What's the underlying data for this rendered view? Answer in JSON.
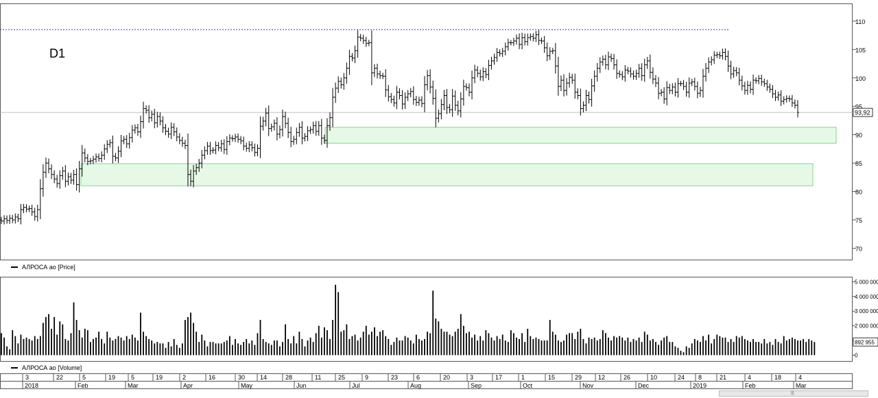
{
  "period_label": "D1",
  "legends": {
    "price": "АЛРОСА ао [Price]",
    "volume": "АЛРОСА ао [Volume]"
  },
  "colors": {
    "bars": "#000000",
    "zone": "#d6f5d6",
    "zone_border": "#7fd87f",
    "dotted": "#3333cc",
    "last_line": "#aaaaaa"
  },
  "chart_data": [
    {
      "type": "ohlc",
      "title": "",
      "ylim": [
        68,
        113
      ],
      "yticks": [
        "110",
        "105",
        "100",
        "95",
        "90",
        "85",
        "80",
        "75",
        "70"
      ],
      "last_value": "93,92",
      "resistance_level": 108.5,
      "zones": [
        {
          "low": 88.5,
          "high": 91.3
        },
        {
          "low": 81,
          "high": 84.9
        }
      ],
      "closes": [
        74.8,
        75.2,
        74.9,
        75.3,
        75.0,
        75.5,
        75.2,
        76.8,
        77.2,
        76.9,
        77.0,
        76.4,
        75.6,
        76.8,
        80.5,
        83.4,
        85.0,
        84.0,
        83.0,
        82.2,
        81.4,
        82.8,
        83.6,
        81.8,
        82.6,
        82.0,
        83.0,
        81.2,
        84.0,
        86.8,
        85.9,
        85.3,
        85.4,
        85.7,
        86.1,
        85.8,
        86.4,
        87.5,
        88.3,
        88.6,
        86.2,
        85.9,
        87.1,
        88.9,
        89.2,
        88.4,
        89.5,
        90.8,
        91.2,
        90.5,
        92.3,
        94.6,
        94.3,
        93.0,
        93.6,
        92.1,
        93.2,
        92.4,
        91.2,
        90.6,
        90.1,
        91.3,
        90.5,
        89.6,
        89.0,
        88.5,
        88.1,
        83.0,
        81.8,
        83.6,
        84.2,
        85.0,
        86.4,
        87.2,
        88.0,
        87.2,
        87.3,
        88.1,
        87.7,
        88.4,
        87.4,
        88.8,
        89.4,
        89.3,
        89.6,
        89.2,
        88.9,
        88.0,
        87.6,
        88.2,
        87.7,
        86.9,
        87.6,
        91.5,
        92.4,
        93.8,
        91.1,
        91.4,
        92.0,
        90.1,
        90.9,
        93.2,
        92.0,
        90.4,
        88.8,
        89.2,
        90.4,
        91.3,
        89.4,
        89.7,
        90.7,
        90.9,
        91.6,
        90.6,
        91.6,
        89.4,
        89.0,
        91.6,
        93.0,
        96.6,
        98.2,
        99.4,
        98.8,
        100.0,
        101.7,
        103.8,
        103.5,
        104.8,
        107.2,
        107.0,
        106.6,
        106.1,
        106.2,
        100.9,
        101.7,
        100.7,
        100.4,
        100.3,
        97.9,
        96.7,
        96.2,
        95.6,
        97.5,
        96.9,
        95.4,
        96.6,
        97.2,
        97.6,
        96.2,
        95.7,
        96.1,
        95.5,
        98.8,
        100.4,
        98.4,
        96.4,
        92.9,
        93.7,
        95.3,
        96.9,
        94.8,
        94.4,
        96.8,
        95.2,
        94.2,
        96.3,
        98.5,
        98.3,
        97.5,
        100.0,
        101.4,
        100.8,
        100.2,
        101.1,
        100.6,
        102.2,
        103.0,
        103.6,
        104.5,
        104.3,
        104.7,
        105.5,
        106.2,
        106.2,
        106.5,
        107.0,
        105.9,
        107.1,
        106.4,
        107.1,
        107.3,
        107.0,
        107.6,
        106.6,
        106.5,
        105.3,
        103.9,
        104.7,
        104.8,
        102.1,
        98.5,
        99.6,
        97.8,
        99.1,
        100.1,
        99.6,
        97.5,
        96.9,
        94.6,
        95.2,
        96.9,
        96.2,
        98.6,
        100.3,
        101.7,
        102.8,
        103.3,
        102.3,
        103.7,
        103.4,
        102.3,
        100.8,
        100.6,
        100.2,
        101.4,
        101.2,
        100.7,
        100.3,
        100.8,
        101.7,
        100.4,
        102.3,
        103.0,
        101.0,
        99.8,
        99.1,
        97.3,
        97.5,
        96.3,
        98.3,
        97.8,
        98.4,
        97.5,
        99.0,
        99.0,
        98.5,
        97.5,
        99.1,
        99.3,
        98.5,
        97.3,
        97.8,
        100.3,
        101.7,
        102.8,
        103.2,
        104.0,
        104.1,
        103.9,
        104.5,
        103.8,
        102.1,
        100.7,
        101.3,
        100.9,
        99.6,
        98.6,
        97.8,
        98.7,
        98.0,
        99.6,
        99.5,
        99.9,
        99.3,
        99.0,
        98.4,
        98.0,
        97.2,
        96.6,
        97.0,
        95.9,
        96.2,
        96.4,
        96.3,
        95.6,
        95.2,
        93.92
      ],
      "volumes": [
        1.5,
        1.2,
        0.6,
        0.4,
        1.7,
        1.3,
        0.8,
        1.4,
        1.1,
        1.2,
        1.1,
        1.0,
        1.3,
        1.1,
        1.3,
        2.2,
        2.6,
        2.8,
        1.8,
        2.6,
        1.4,
        2.3,
        2.1,
        1.1,
        1.0,
        1.5,
        3.6,
        2.4,
        1.7,
        1.2,
        1.8,
        1.7,
        0.9,
        1.1,
        1.2,
        1.6,
        1.1,
        0.8,
        1.6,
        1.2,
        1.0,
        1.1,
        1.3,
        1.2,
        1.0,
        1.3,
        1.1,
        1.4,
        1.2,
        1.0,
        2.9,
        1.6,
        1.3,
        1.1,
        1.0,
        0.8,
        0.9,
        0.8,
        0.8,
        0.5,
        0.9,
        0.6,
        1.1,
        0.7,
        0.5,
        0.8,
        2.4,
        2.6,
        2.9,
        2.2,
        1.6,
        0.9,
        1.4,
        1.0,
        0.6,
        0.9,
        0.9,
        0.8,
        0.8,
        0.8,
        0.9,
        1.0,
        1.3,
        0.7,
        1.1,
        0.8,
        0.7,
        0.9,
        1.1,
        0.8,
        1.0,
        0.7,
        1.5,
        2.4,
        1.1,
        0.9,
        0.8,
        0.7,
        1.0,
        1.0,
        0.6,
        0.9,
        2.1,
        1.1,
        0.8,
        1.3,
        0.8,
        1.6,
        1.1,
        0.6,
        1.0,
        1.2,
        0.9,
        1.5,
        2.0,
        1.2,
        1.9,
        1.7,
        1.1,
        2.4,
        4.8,
        4.3,
        1.6,
        1.7,
        2.1,
        1.1,
        1.3,
        1.4,
        1.0,
        1.2,
        1.6,
        2.0,
        1.4,
        1.6,
        1.9,
        1.3,
        1.6,
        1.7,
        1.3,
        1.1,
        0.7,
        0.9,
        1.2,
        1.0,
        1.0,
        1.3,
        1.2,
        1.0,
        0.8,
        1.4,
        1.1,
        1.0,
        1.1,
        1.6,
        1.5,
        4.4,
        2.5,
        2.3,
        1.8,
        1.6,
        1.6,
        1.4,
        1.3,
        1.6,
        1.8,
        2.8,
        2.0,
        1.5,
        1.6,
        1.2,
        1.4,
        1.0,
        1.3,
        1.0,
        1.7,
        1.5,
        1.2,
        1.0,
        1.3,
        1.1,
        1.4,
        1.0,
        0.9,
        1.7,
        1.5,
        1.2,
        1.1,
        1.5,
        0.9,
        1.8,
        1.3,
        1.1,
        1.2,
        1.1,
        1.0,
        1.0,
        1.0,
        2.4,
        1.6,
        1.4,
        1.0,
        0.9,
        1.0,
        1.4,
        1.5,
        1.5,
        1.1,
        1.6,
        1.8,
        1.1,
        0.8,
        1.2,
        1.1,
        1.2,
        1.0,
        1.1,
        1.7,
        1.5,
        1.2,
        1.0,
        1.3,
        1.2,
        1.3,
        1.2,
        1.0,
        1.2,
        0.9,
        1.1,
        1.0,
        1.2,
        0.9,
        1.6,
        1.4,
        1.0,
        1.1,
        0.9,
        0.7,
        1.0,
        1.2,
        1.3,
        0.9,
        0.9,
        0.6,
        0.5,
        0.3,
        0.2,
        0.6,
        0.5,
        0.8,
        1.1,
        1.0,
        0.9,
        1.3,
        1.0,
        1.4,
        0.8,
        1.1,
        1.4,
        1.3,
        1.2,
        1.2,
        0.9,
        1.1,
        0.9,
        1.3,
        1.2,
        1.3,
        1.1,
        1.0,
        0.9,
        1.1,
        0.9,
        0.9,
        0.8,
        1.1,
        0.8,
        0.9,
        0.7,
        1.1,
        0.9,
        0.8,
        1.3,
        1.0,
        1.1,
        1.2,
        1.1,
        1.0,
        1.0,
        1.1,
        0.9,
        1.1,
        1.0,
        0.9
      ],
      "volume_ylim": [
        -0.4,
        5.3
      ],
      "volume_yticks": [
        "5 000 000",
        "4 000 000",
        "3 000 000",
        "2 000 000",
        "1 000 000",
        "0"
      ],
      "volume_last": "892 955"
    }
  ],
  "x_axis": {
    "days": [
      "3",
      "22",
      "5",
      "19",
      "5",
      "19",
      "2",
      "16",
      "30",
      "14",
      "28",
      "11",
      "25",
      "9",
      "23",
      "6",
      "20",
      "3",
      "17",
      "1",
      "15",
      "29",
      "12",
      "26",
      "10",
      "24",
      "8",
      "21",
      "4",
      "18",
      "4"
    ],
    "months": [
      "2018",
      "Feb",
      "Mar",
      "Apr",
      "May",
      "Jun",
      "Jul",
      "Aug",
      "Sep",
      "Oct",
      "Nov",
      "Dec",
      "2019",
      "Feb",
      "Mar"
    ]
  }
}
